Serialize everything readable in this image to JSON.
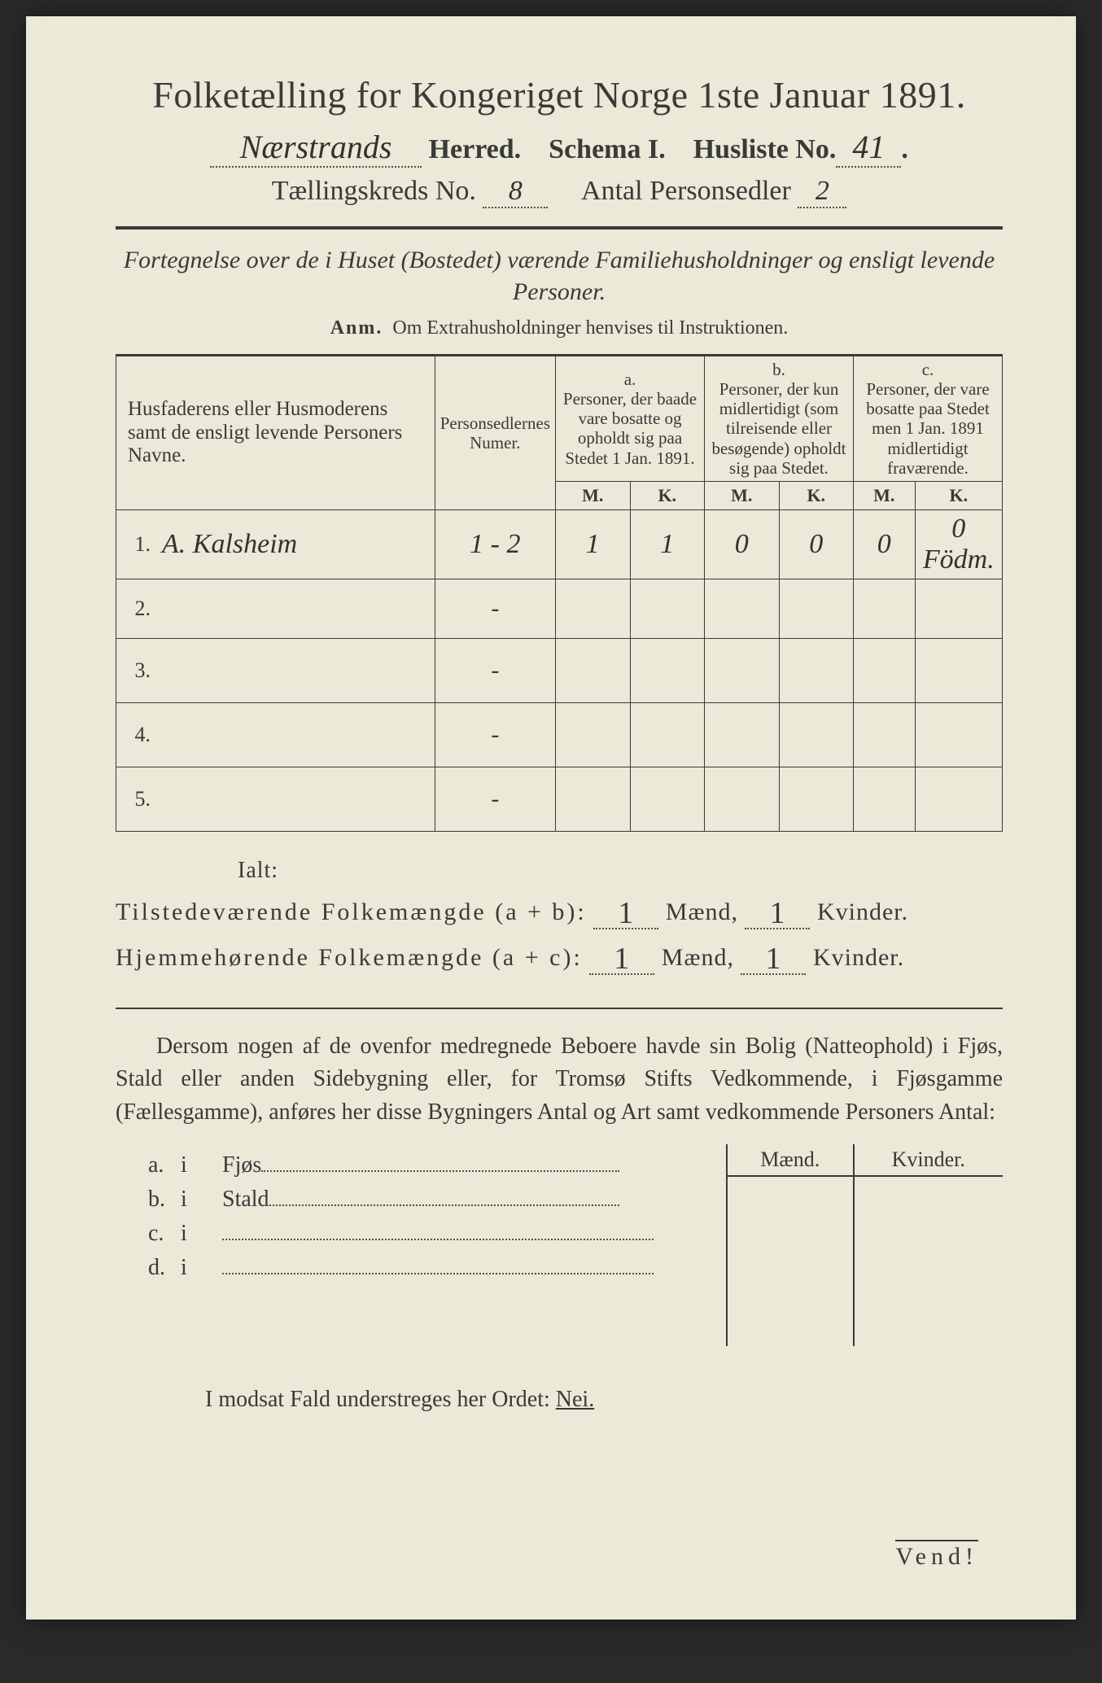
{
  "colors": {
    "paper": "#ebe9d7",
    "ink": "#3a3a38",
    "dotted": "#505048",
    "background": "#2a2a2a",
    "handwriting": "#34322c"
  },
  "typography": {
    "title_fontsize": 46,
    "header_fontsize": 34,
    "body_fontsize": 28,
    "table_header_fontsize": 21
  },
  "title": "Folketælling for Kongeriget Norge 1ste Januar 1891.",
  "header": {
    "herred_value": "Nærstrands",
    "herred_label": "Herred.",
    "schema_label": "Schema I.",
    "husliste_label": "Husliste No.",
    "husliste_value": "41",
    "kreds_label": "Tællingskreds No.",
    "kreds_value": "8",
    "antal_label": "Antal Personsedler",
    "antal_value": "2"
  },
  "subtitle": {
    "line1": "Fortegnelse over de i Huset (Bostedet) værende Familiehusholdninger og ensligt levende Personer.",
    "anm_label": "Anm.",
    "anm_text": "Om Extrahusholdninger henvises til Instruktionen."
  },
  "table": {
    "col_names": {
      "name": "Husfaderens eller Husmoderens samt de ensligt levende Personers Navne.",
      "nummer": "Personsedlernes Numer.",
      "a_label": "a.",
      "a_text": "Personer, der baade vare bosatte og opholdt sig paa Stedet 1 Jan. 1891.",
      "b_label": "b.",
      "b_text": "Personer, der kun midlertidigt (som tilreisende eller besøgende) opholdt sig paa Stedet.",
      "c_label": "c.",
      "c_text": "Personer, der vare bosatte paa Stedet men 1 Jan. 1891 midlertidigt fraværende.",
      "m": "M.",
      "k": "K."
    },
    "rows": [
      {
        "n": "1.",
        "name": "A. Kalsheim",
        "nummer": "1 - 2",
        "a_m": "1",
        "a_k": "1",
        "b_m": "0",
        "b_k": "0",
        "c_m": "0",
        "c_k": "0 Födm."
      },
      {
        "n": "2.",
        "name": "",
        "nummer": "-",
        "a_m": "",
        "a_k": "",
        "b_m": "",
        "b_k": "",
        "c_m": "",
        "c_k": ""
      },
      {
        "n": "3.",
        "name": "",
        "nummer": "-",
        "a_m": "",
        "a_k": "",
        "b_m": "",
        "b_k": "",
        "c_m": "",
        "c_k": ""
      },
      {
        "n": "4.",
        "name": "",
        "nummer": "-",
        "a_m": "",
        "a_k": "",
        "b_m": "",
        "b_k": "",
        "c_m": "",
        "c_k": ""
      },
      {
        "n": "5.",
        "name": "",
        "nummer": "-",
        "a_m": "",
        "a_k": "",
        "b_m": "",
        "b_k": "",
        "c_m": "",
        "c_k": ""
      }
    ]
  },
  "totals": {
    "ialt_label": "Ialt:",
    "line1_label": "Tilstedeværende Folkemængde (a + b):",
    "line2_label": "Hjemmehørende Folkemængde (a + c):",
    "maend_label": "Mænd,",
    "kvinder_label": "Kvinder.",
    "line1_m": "1",
    "line1_k": "1",
    "line2_m": "1",
    "line2_k": "1"
  },
  "paragraph": "Dersom nogen af de ovenfor medregnede Beboere havde sin Bolig (Natteophold) i Fjøs, Stald eller anden Sidebygning eller, for Tromsø Stifts Vedkommende, i Fjøsgamme (Fællesgamme), anføres her disse Bygningers Antal og Art samt vedkommende Personers Antal:",
  "lower": {
    "maend": "Mænd.",
    "kvinder": "Kvinder.",
    "rows": [
      {
        "lbl": "a.",
        "i": "i",
        "txt": "Fjøs",
        "dots_w": 440
      },
      {
        "lbl": "b.",
        "i": "i",
        "txt": "Stald",
        "dots_w": 430
      },
      {
        "lbl": "c.",
        "i": "i",
        "txt": "",
        "dots_w": 530
      },
      {
        "lbl": "d.",
        "i": "i",
        "txt": "",
        "dots_w": 530
      }
    ]
  },
  "nei_line": {
    "text": "I modsat Fald understreges her Ordet:",
    "nei": "Nei."
  },
  "vend": "Vend!"
}
